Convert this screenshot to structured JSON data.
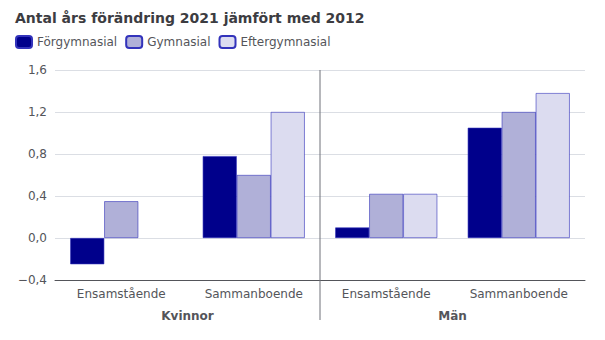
{
  "chart_data": {
    "type": "bar",
    "title": "Antal års förändring 2021 jämfört med 2012",
    "categories": [
      "Ensamstående",
      "Sammanboende",
      "Ensamstående",
      "Sammanboende"
    ],
    "series": [
      {
        "name": "Förgymnasial",
        "color": "#00008B",
        "values": [
          -0.25,
          0.78,
          0.1,
          1.05
        ]
      },
      {
        "name": "Gymnasial",
        "color": "#B0B0D8",
        "values": [
          0.35,
          0.6,
          0.42,
          1.2
        ]
      },
      {
        "name": "Eftergymnasial",
        "color": "#DCDCF0",
        "values": [
          null,
          1.2,
          0.42,
          1.38
        ]
      }
    ],
    "ylim": [
      -0.4,
      1.6
    ],
    "yticks": [
      {
        "value": -0.4,
        "label": "−0,4"
      },
      {
        "value": 0.0,
        "label": "0,0"
      },
      {
        "value": 0.4,
        "label": "0,4"
      },
      {
        "value": 0.8,
        "label": "0,8"
      },
      {
        "value": 1.2,
        "label": "1,2"
      },
      {
        "value": 1.6,
        "label": "1,6"
      }
    ],
    "grid": true,
    "legend": "upper left",
    "annotations": [
      "Kvinnor",
      "Män"
    ]
  }
}
